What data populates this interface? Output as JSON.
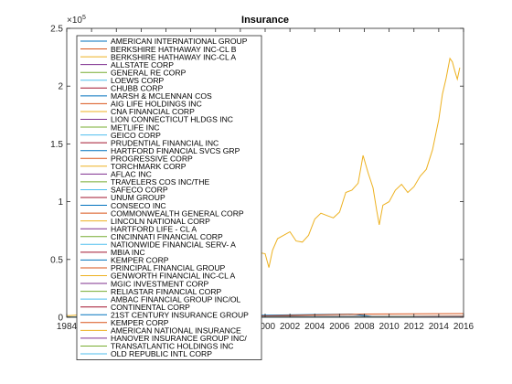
{
  "chart_data": {
    "type": "line",
    "title": "Insurance",
    "xlabel": "",
    "ylabel": "",
    "xlim": [
      1984,
      2016
    ],
    "ylim": [
      0,
      250000
    ],
    "x_ticks": [
      1984,
      1986,
      1988,
      1990,
      1992,
      1994,
      1996,
      1998,
      2000,
      2002,
      2004,
      2006,
      2008,
      2010,
      2012,
      2014,
      2016
    ],
    "y_ticks": [
      0,
      0.5,
      1,
      1.5,
      2,
      2.5
    ],
    "y_tick_labels": [
      "0",
      "0.5",
      "1",
      "1.5",
      "2",
      "2.5"
    ],
    "y_exponent_label": "×10",
    "y_exponent_power": "5",
    "grid": false,
    "legend_position": "top-left",
    "series": [
      {
        "name": "AMERICAN INTERNATIONAL GROUP",
        "color": "#0072bd",
        "x": [
          1984,
          1990,
          2000,
          2007,
          2009,
          2016
        ],
        "values": [
          300,
          800,
          1800,
          2800,
          300,
          600
        ]
      },
      {
        "name": "BERKSHIRE HATHAWAY INC-CL B",
        "color": "#d95319",
        "x": [
          1996,
          2000,
          2008,
          2016
        ],
        "values": [
          800,
          1200,
          2800,
          3200
        ]
      },
      {
        "name": "BERKSHIRE HATHAWAY INC-CL A",
        "color": "#edb120",
        "x": [
          1984,
          1986,
          1988,
          1990,
          1992,
          1994,
          1996,
          1998,
          1998.5,
          1999,
          1999.5,
          2000.0,
          2000.3,
          2000.6,
          2001.0,
          2001.5,
          2002.0,
          2002.5,
          2003.0,
          2003.5,
          2004.0,
          2004.5,
          2005.0,
          2005.5,
          2006.0,
          2006.5,
          2007.0,
          2007.5,
          2007.9,
          2008.3,
          2008.7,
          2009.0,
          2009.2,
          2009.5,
          2010.0,
          2010.5,
          2011.0,
          2011.5,
          2012.0,
          2012.5,
          2013.0,
          2013.5,
          2014.0,
          2014.3,
          2014.6,
          2014.9,
          2015.1,
          2015.3,
          2015.5,
          2015.7
        ],
        "values": [
          1300,
          2700,
          3400,
          6600,
          9100,
          16000,
          32000,
          65000,
          78000,
          62000,
          56000,
          55000,
          43000,
          58000,
          68000,
          71000,
          74000,
          66000,
          65000,
          71000,
          85000,
          90000,
          88000,
          86000,
          91000,
          108000,
          110000,
          116000,
          140000,
          125000,
          112000,
          92000,
          80000,
          97000,
          100000,
          110000,
          115000,
          108000,
          113000,
          122000,
          128000,
          145000,
          171000,
          193000,
          207000,
          224000,
          221000,
          213000,
          206000,
          216000
        ]
      },
      {
        "name": "ALLSTATE CORP",
        "color": "#7e2f8e",
        "x": [
          1993,
          2016
        ],
        "values": [
          400,
          900
        ]
      },
      {
        "name": "GENERAL RE CORP",
        "color": "#77ac30",
        "x": [
          1984,
          1998
        ],
        "values": [
          300,
          700
        ]
      },
      {
        "name": "LOEWS CORP",
        "color": "#4dbeee",
        "x": [
          1984,
          2016
        ],
        "values": [
          200,
          600
        ]
      },
      {
        "name": "CHUBB CORP",
        "color": "#a2142f",
        "x": [
          1984,
          2016
        ],
        "values": [
          200,
          900
        ]
      },
      {
        "name": "MARSH & MCLENNAN COS",
        "color": "#0072bd",
        "x": [
          1984,
          2016
        ],
        "values": [
          200,
          700
        ]
      },
      {
        "name": "AIG LIFE HOLDINGS INC",
        "color": "#d95319",
        "x": [
          1984,
          2001
        ],
        "values": [
          200,
          400
        ]
      },
      {
        "name": "CNA FINANCIAL CORP",
        "color": "#edb120",
        "x": [
          1984,
          2016
        ],
        "values": [
          200,
          500
        ]
      },
      {
        "name": "LION CONNECTICUT HLDGS INC",
        "color": "#7e2f8e",
        "x": [
          1984,
          1998
        ],
        "values": [
          100,
          300
        ]
      },
      {
        "name": "METLIFE INC",
        "color": "#77ac30",
        "x": [
          2000,
          2016
        ],
        "values": [
          300,
          500
        ]
      },
      {
        "name": "GEICO CORP",
        "color": "#4dbeee",
        "x": [
          1984,
          1996
        ],
        "values": [
          100,
          400
        ]
      },
      {
        "name": "PRUDENTIAL FINANCIAL INC",
        "color": "#a2142f",
        "x": [
          2001,
          2016
        ],
        "values": [
          300,
          800
        ]
      },
      {
        "name": "HARTFORD FINANCIAL SVCS GRP",
        "color": "#0072bd",
        "x": [
          1995,
          2016
        ],
        "values": [
          200,
          400
        ]
      },
      {
        "name": "PROGRESSIVE CORP",
        "color": "#d95319",
        "x": [
          1984,
          2016
        ],
        "values": [
          100,
          300
        ]
      },
      {
        "name": "TORCHMARK CORP",
        "color": "#edb120",
        "x": [
          1984,
          2016
        ],
        "values": [
          100,
          300
        ]
      },
      {
        "name": "AFLAC INC",
        "color": "#7e2f8e",
        "x": [
          1984,
          2016
        ],
        "values": [
          100,
          400
        ]
      },
      {
        "name": "TRAVELERS COS INC/THE",
        "color": "#77ac30",
        "x": [
          1984,
          2016
        ],
        "values": [
          200,
          600
        ]
      },
      {
        "name": "SAFECO CORP",
        "color": "#4dbeee",
        "x": [
          1984,
          2008
        ],
        "values": [
          100,
          300
        ]
      },
      {
        "name": "UNUM GROUP",
        "color": "#a2142f",
        "x": [
          1984,
          2016
        ],
        "values": [
          100,
          200
        ]
      },
      {
        "name": "CONSECO INC",
        "color": "#0072bd",
        "x": [
          1988,
          2002
        ],
        "values": [
          100,
          200
        ]
      },
      {
        "name": "COMMONWEALTH GENERAL CORP",
        "color": "#d95319",
        "x": [
          1984,
          2000
        ],
        "values": [
          100,
          200
        ]
      },
      {
        "name": "LINCOLN NATIONAL CORP",
        "color": "#edb120",
        "x": [
          1984,
          2016
        ],
        "values": [
          100,
          300
        ]
      },
      {
        "name": "HARTFORD LIFE - CL A",
        "color": "#7e2f8e",
        "x": [
          1997,
          2000
        ],
        "values": [
          100,
          200
        ]
      },
      {
        "name": "CINCINNATI FINANCIAL CORP",
        "color": "#77ac30",
        "x": [
          1984,
          2016
        ],
        "values": [
          100,
          300
        ]
      },
      {
        "name": "NATIONWIDE FINANCIAL SERV- A",
        "color": "#4dbeee",
        "x": [
          1997,
          2009
        ],
        "values": [
          100,
          200
        ]
      },
      {
        "name": "MBIA INC",
        "color": "#a2142f",
        "x": [
          1987,
          2016
        ],
        "values": [
          100,
          100
        ]
      },
      {
        "name": "KEMPER CORP",
        "color": "#0072bd",
        "x": [
          1984,
          1996
        ],
        "values": [
          100,
          200
        ]
      },
      {
        "name": "PRINCIPAL FINANCIAL GROUP",
        "color": "#d95319",
        "x": [
          2001,
          2016
        ],
        "values": [
          100,
          200
        ]
      },
      {
        "name": "GENWORTH FINANCIAL INC-CL A",
        "color": "#edb120",
        "x": [
          2004,
          2016
        ],
        "values": [
          100,
          100
        ]
      },
      {
        "name": "MGIC INVESTMENT CORP",
        "color": "#7e2f8e",
        "x": [
          1991,
          2016
        ],
        "values": [
          100,
          100
        ]
      },
      {
        "name": "RELIASTAR FINANCIAL CORP",
        "color": "#77ac30",
        "x": [
          1989,
          2000
        ],
        "values": [
          100,
          100
        ]
      },
      {
        "name": "AMBAC FINANCIAL GROUP INC/OL",
        "color": "#4dbeee",
        "x": [
          1991,
          2010
        ],
        "values": [
          100,
          100
        ]
      },
      {
        "name": "CONTINENTAL CORP",
        "color": "#a2142f",
        "x": [
          1984,
          1995
        ],
        "values": [
          100,
          100
        ]
      },
      {
        "name": "21ST CENTURY INSURANCE GROUP",
        "color": "#0072bd",
        "x": [
          1984,
          2007
        ],
        "values": [
          100,
          100
        ]
      },
      {
        "name": "KEMPER CORP",
        "color": "#d95319",
        "x": [
          1990,
          2016
        ],
        "values": [
          100,
          100
        ]
      },
      {
        "name": "AMERICAN NATIONAL INSURANCE",
        "color": "#edb120",
        "x": [
          1984,
          2016
        ],
        "values": [
          100,
          200
        ]
      },
      {
        "name": "HANOVER INSURANCE GROUP INC/",
        "color": "#7e2f8e",
        "x": [
          1995,
          2016
        ],
        "values": [
          100,
          200
        ]
      },
      {
        "name": "TRANSATLANTIC HOLDINGS INC",
        "color": "#77ac30",
        "x": [
          1990,
          2012
        ],
        "values": [
          100,
          100
        ]
      },
      {
        "name": "OLD REPUBLIC INTL CORP",
        "color": "#4dbeee",
        "x": [
          1984,
          2016
        ],
        "values": [
          100,
          100
        ]
      }
    ]
  }
}
